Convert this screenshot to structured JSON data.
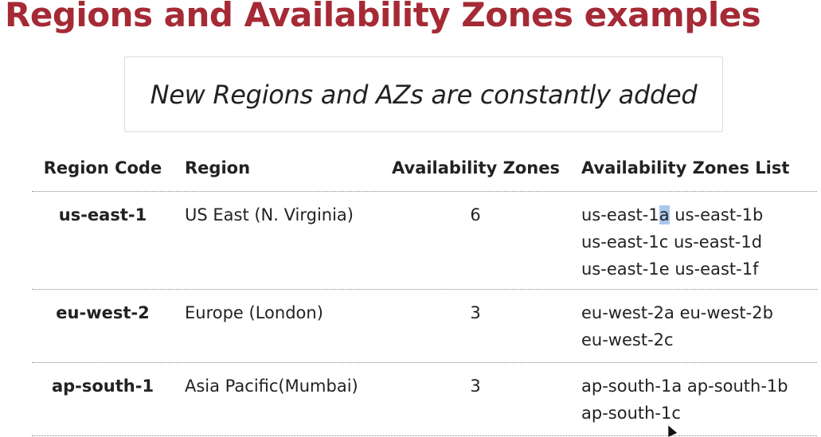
{
  "slide": {
    "title": "Regions and Availability Zones examples",
    "note": "New Regions and AZs are constantly added"
  },
  "table": {
    "headers": {
      "code": "Region Code",
      "region": "Region",
      "count": "Availability Zones",
      "list": "Availability Zones List"
    },
    "rows": [
      {
        "code": "us-east-1",
        "region": "US East (N. Virginia)",
        "count": "6",
        "zones": [
          [
            "us-east-1a",
            "us-east-1b"
          ],
          [
            "us-east-1c",
            "us-east-1d"
          ],
          [
            "us-east-1e",
            "us-east-1f"
          ]
        ]
      },
      {
        "code": "eu-west-2",
        "region": "Europe (London)",
        "count": "3",
        "zones": [
          [
            "eu-west-2a",
            "eu-west-2b"
          ],
          [
            "eu-west-2c"
          ]
        ]
      },
      {
        "code": "ap-south-1",
        "region": "Asia Pacific(Mumbai)",
        "count": "3",
        "zones": [
          [
            "ap-south-1a",
            "ap-south-1b"
          ],
          [
            "ap-south-1c"
          ]
        ]
      }
    ]
  },
  "selection": {
    "zone": "us-east-1a",
    "selected_text": "a",
    "color": "#a9c8ee"
  },
  "colors": {
    "title": "#a52a35",
    "text": "#222222",
    "divider": "#8a8a8a"
  }
}
